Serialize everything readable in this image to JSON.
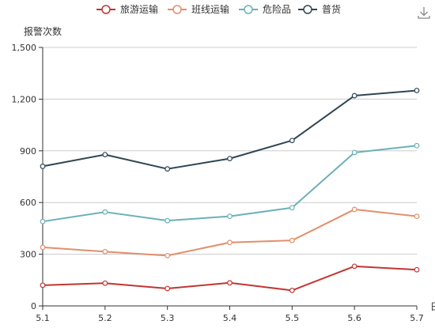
{
  "chart_data": {
    "type": "line",
    "title": "",
    "ylabel": "报警次数",
    "xlabel": "日",
    "categories": [
      "5.1",
      "5.2",
      "5.3",
      "5.4",
      "5.5",
      "5.6",
      "5.7"
    ],
    "ylim": [
      0,
      1500
    ],
    "yticks": [
      "0",
      "300",
      "600",
      "900",
      "1,200",
      "1,500"
    ],
    "ytick_values": [
      0,
      300,
      600,
      900,
      1200,
      1500
    ],
    "grid": true,
    "legend_position": "top",
    "series": [
      {
        "name": "旅游运输",
        "color": "#c23531",
        "values": [
          120,
          132,
          101,
          134,
          90,
          230,
          210
        ]
      },
      {
        "name": "班线运输",
        "color": "#e38e6b",
        "values": [
          340,
          315,
          292,
          368,
          380,
          560,
          520
        ]
      },
      {
        "name": "危险品",
        "color": "#6ab0b8",
        "values": [
          490,
          545,
          495,
          520,
          570,
          890,
          930
        ]
      },
      {
        "name": "普货",
        "color": "#2f4554",
        "values": [
          810,
          878,
          795,
          855,
          960,
          1220,
          1250
        ]
      }
    ]
  },
  "toolbox": {
    "icon": "download-icon"
  }
}
